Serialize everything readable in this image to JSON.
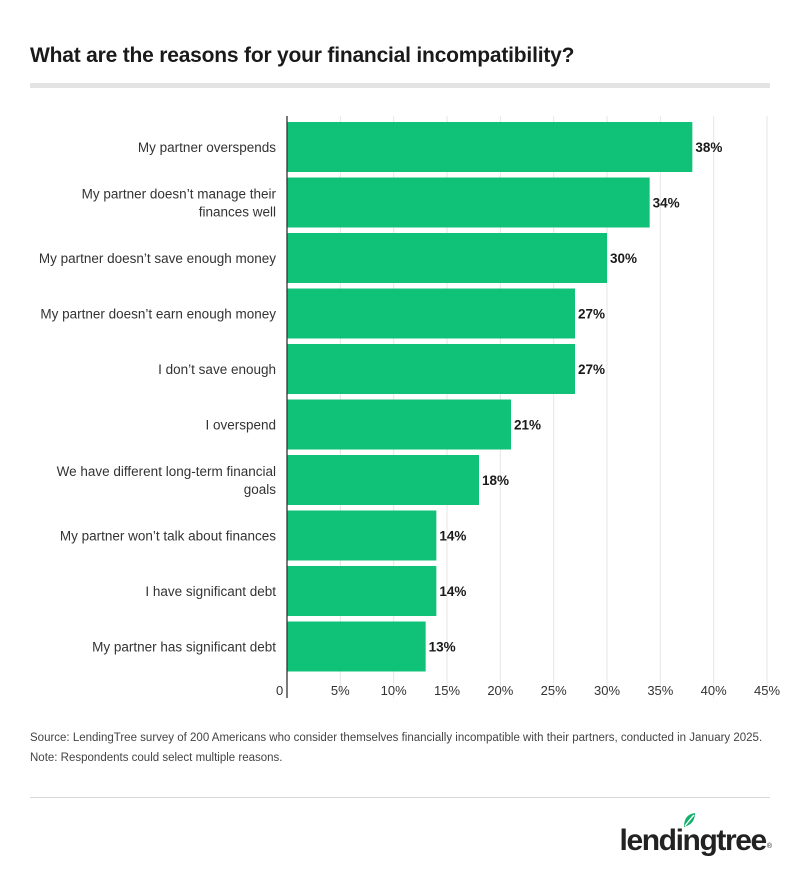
{
  "title": "What are the reasons for your financial incompatibility?",
  "source": "Source: LendingTree survey of 200 Americans who consider themselves financially incompatible with their partners, conducted in January 2025. Note: Respondents could select multiple reasons.",
  "logo": {
    "text": "lendingtree",
    "reg": "®",
    "icon": "leaf-icon"
  },
  "colors": {
    "bar": "#10C278",
    "grid": "#e6e6e6",
    "axis": "#333333",
    "logo_leaf": "#12b06c"
  },
  "chart_data": {
    "type": "bar",
    "orientation": "horizontal",
    "title": "What are the reasons for your financial incompatibility?",
    "xlabel": "",
    "ylabel": "",
    "categories": [
      [
        "My partner overspends"
      ],
      [
        "My partner doesn’t manage their",
        "finances well"
      ],
      [
        "My partner doesn’t save enough money"
      ],
      [
        "My partner doesn’t earn enough money"
      ],
      [
        "I don’t save enough"
      ],
      [
        "I overspend"
      ],
      [
        "We have different long-term financial",
        "goals"
      ],
      [
        "My partner won’t talk about finances"
      ],
      [
        "I have significant debt"
      ],
      [
        "My partner has significant debt"
      ]
    ],
    "values": [
      38,
      34,
      30,
      27,
      27,
      21,
      18,
      14,
      14,
      13
    ],
    "value_labels": [
      "38%",
      "34%",
      "30%",
      "27%",
      "27%",
      "21%",
      "18%",
      "14%",
      "14%",
      "13%"
    ],
    "xlim": [
      0,
      45
    ],
    "xticks": [
      0,
      5,
      10,
      15,
      20,
      25,
      30,
      35,
      40,
      45
    ],
    "xtick_labels": [
      "0",
      "5%",
      "10%",
      "15%",
      "20%",
      "25%",
      "30%",
      "35%",
      "40%",
      "45%"
    ],
    "grid": true,
    "legend": "none"
  }
}
